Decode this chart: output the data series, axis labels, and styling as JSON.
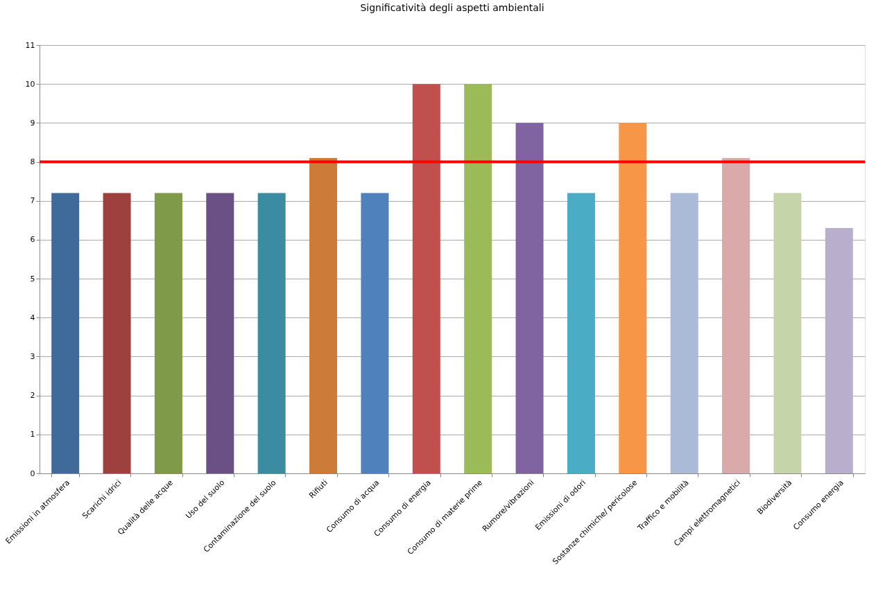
{
  "chart_data": {
    "type": "bar",
    "title": "Significatività degli aspetti ambientali",
    "categories": [
      "Emissioni in atmosfera",
      "Scarichi idrici",
      "Qualità delle acque",
      "Uso del suolo",
      "Contaminazione del suolo",
      "Rifiuti",
      "Consumo di acqua",
      "Consumo di energia",
      "Consumo di materie prime",
      "Rumore/vibrazioni",
      "Emissioni di odori",
      "Sostanze chimiche/ pericolose",
      "Traffico e mobilità",
      "Campi elettromagnetici",
      "Biodiversità",
      "Consumo energia"
    ],
    "values": [
      7.2,
      7.2,
      7.2,
      7.2,
      7.2,
      8.1,
      7.2,
      10,
      10,
      9,
      7.2,
      9,
      7.2,
      8.1,
      7.2,
      6.3
    ],
    "colors": [
      "#406a9a",
      "#9e403e",
      "#7f9a48",
      "#6a5085",
      "#3b8ca1",
      "#cc7b38",
      "#4f81bd",
      "#c0504d",
      "#9bbb59",
      "#8064a2",
      "#4bacc6",
      "#f79646",
      "#aabad7",
      "#d9aaa9",
      "#c6d5a9",
      "#b9aecb"
    ],
    "ylim": [
      0,
      11
    ],
    "yticks": [
      0,
      1,
      2,
      3,
      4,
      5,
      6,
      7,
      8,
      9,
      10,
      11
    ],
    "grid": "y",
    "ref_lines": [
      {
        "axis": "y",
        "value": 8,
        "color": "#ff0000",
        "line_style": "solid"
      }
    ]
  }
}
